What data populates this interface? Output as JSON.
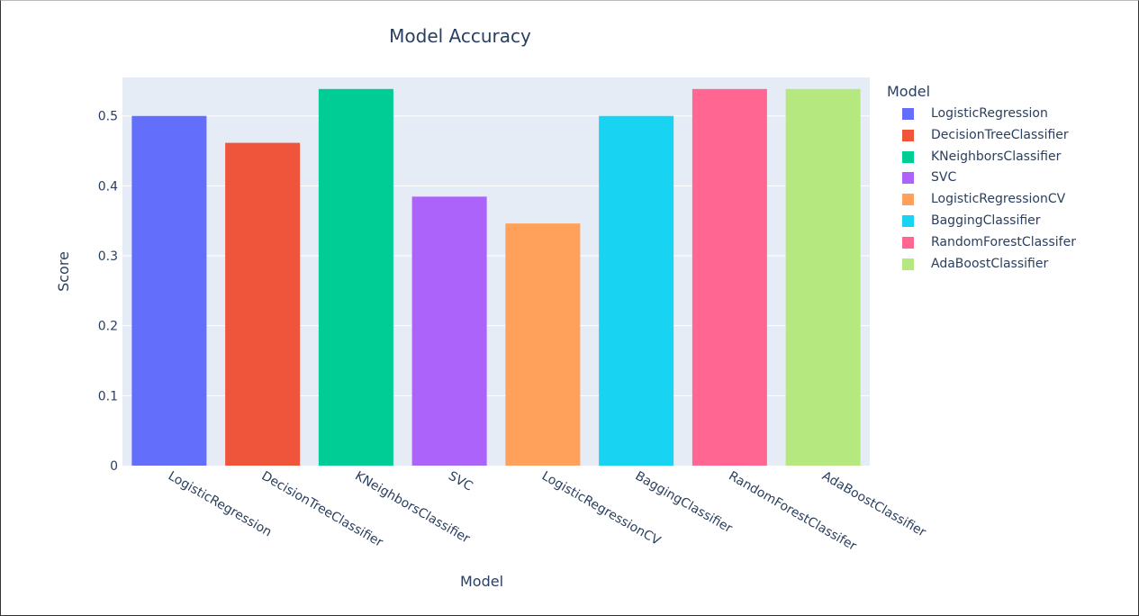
{
  "chart_data": {
    "type": "bar",
    "title": "Model Accuracy",
    "xlabel": "Model",
    "ylabel": "Score",
    "ylim": [
      0,
      0.555
    ],
    "yticks": [
      0,
      0.1,
      0.2,
      0.3,
      0.4,
      0.5
    ],
    "ytick_labels": [
      "0",
      "0.1",
      "0.2",
      "0.3",
      "0.4",
      "0.5"
    ],
    "grid": true,
    "legend_title": "Model",
    "legend_position": "right",
    "categories": [
      "LogisticRegression",
      "DecisionTreeClassifier",
      "KNeighborsClassifier",
      "SVC",
      "LogisticRegressionCV",
      "BaggingClassifier",
      "RandomForestClassifer",
      "AdaBoostClassifier"
    ],
    "values": [
      0.5,
      0.4615,
      0.5385,
      0.3846,
      0.3462,
      0.5,
      0.5385,
      0.5385
    ],
    "colors": [
      "#636efa",
      "#ef553b",
      "#00cc96",
      "#ab63fa",
      "#ffa15a",
      "#19d3f3",
      "#ff6692",
      "#b6e880"
    ]
  }
}
